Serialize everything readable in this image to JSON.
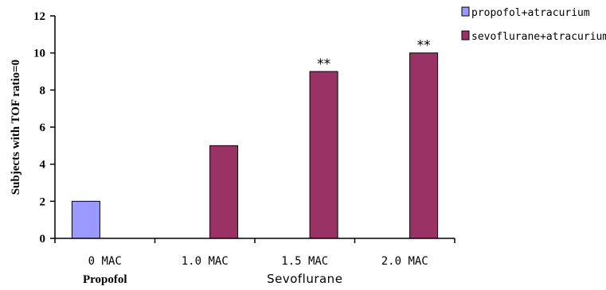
{
  "chart_data": {
    "type": "bar",
    "ylabel": "Subjects with TOF ratio=0",
    "ylim": [
      0,
      12
    ],
    "yticks": [
      0,
      2,
      4,
      6,
      8,
      10,
      12
    ],
    "grid": false,
    "legend_position": "top-right",
    "categories": [
      "0 MAC",
      "1.0 MAC",
      "1.5 MAC",
      "2.0 MAC"
    ],
    "groups": [
      {
        "label": "Propofol",
        "categories": [
          "0 MAC"
        ]
      },
      {
        "label": "Sevoflurane",
        "categories": [
          "1.0 MAC",
          "1.5 MAC",
          "2.0 MAC"
        ]
      }
    ],
    "series": [
      {
        "name": "propofol+atracurium",
        "color": "#9999ff",
        "values": [
          2,
          null,
          null,
          null
        ]
      },
      {
        "name": "sevoflurane+atracurium",
        "color": "#993366",
        "values": [
          null,
          5,
          9,
          10
        ]
      }
    ],
    "annotations": [
      {
        "category": "1.5 MAC",
        "text": "**"
      },
      {
        "category": "2.0 MAC",
        "text": "**"
      }
    ]
  }
}
